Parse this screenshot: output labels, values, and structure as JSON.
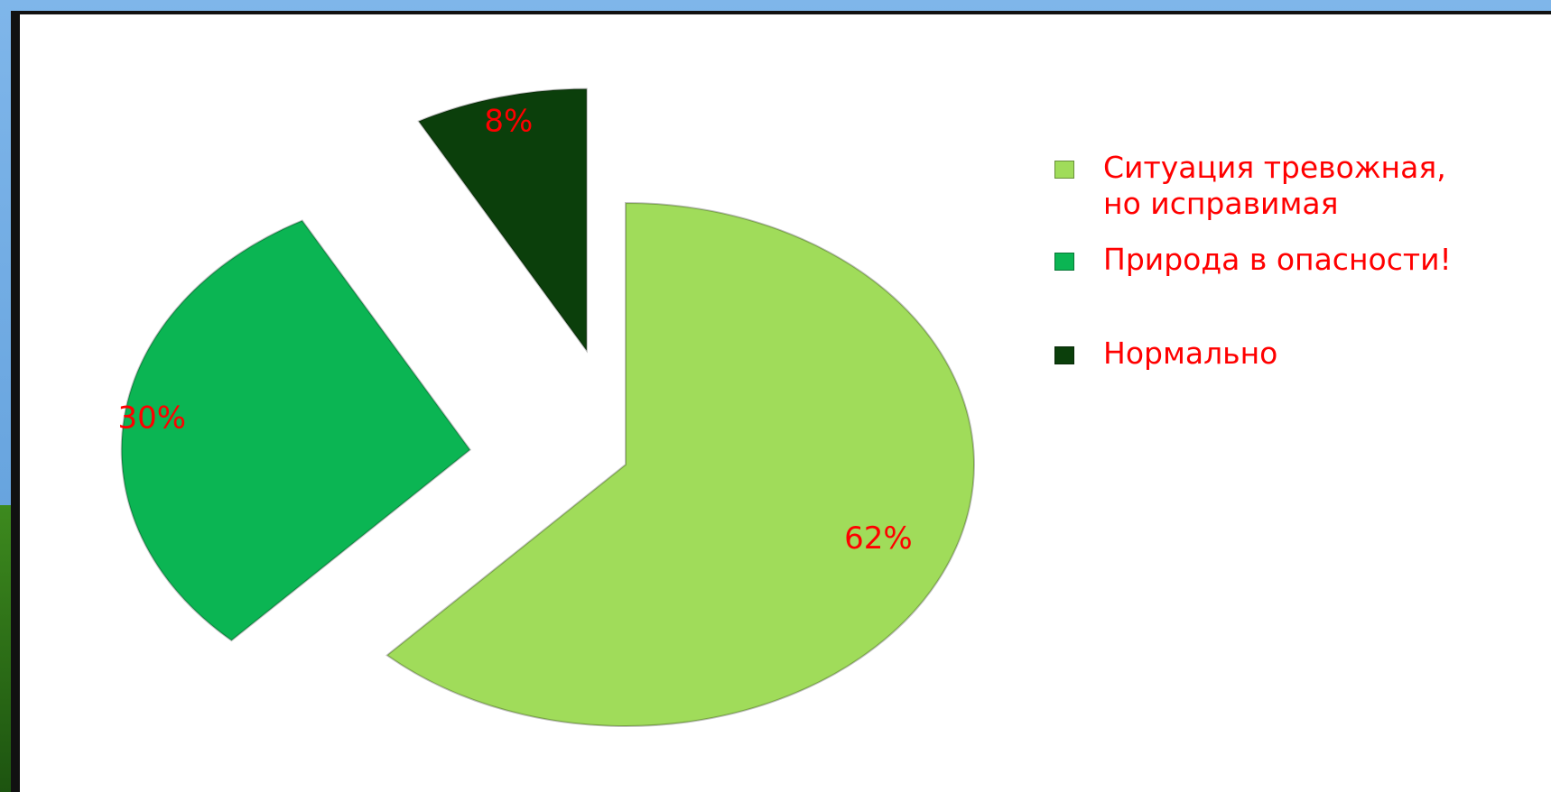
{
  "chart_data": {
    "type": "pie",
    "categories": [
      "Ситуация тревожная, но исправимая",
      "Природа в опасности!",
      "Нормально"
    ],
    "values": [
      62,
      30,
      8
    ],
    "value_labels": [
      "62%",
      "30%",
      "8%"
    ],
    "colors": [
      "#a0dc5a",
      "#0bb553",
      "#0b3f0b"
    ],
    "legend": "right"
  }
}
